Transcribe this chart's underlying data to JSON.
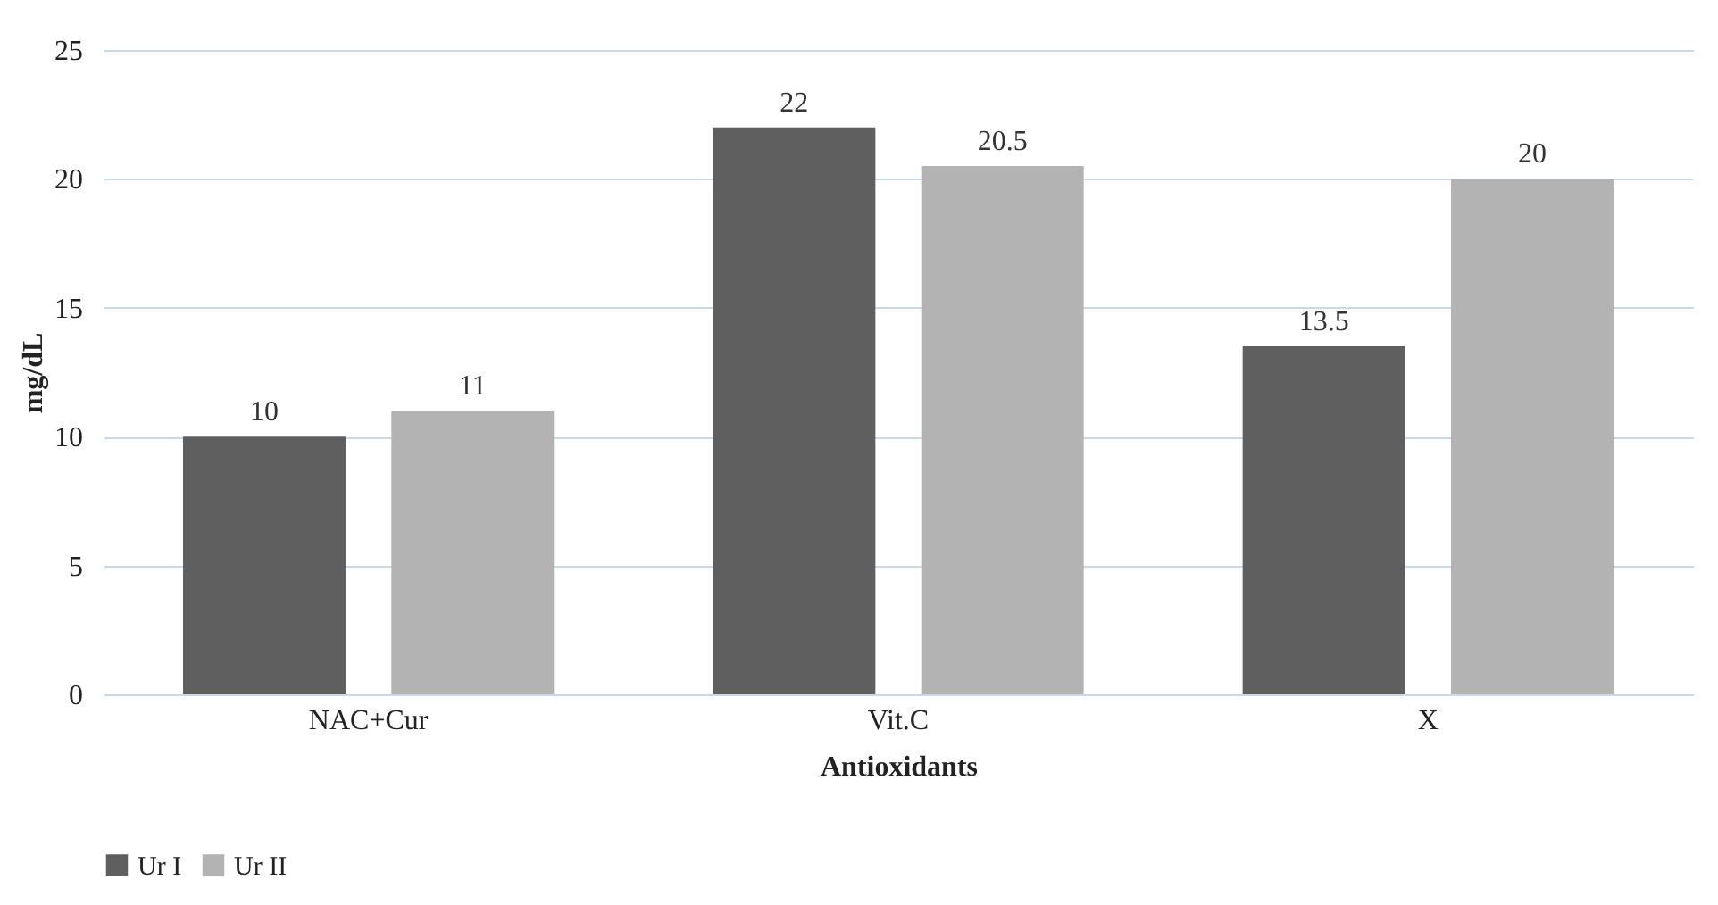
{
  "chart_data": {
    "type": "bar",
    "xlabel": "Antioxidants",
    "ylabel": "mg/dL",
    "categories": [
      "NAC+Cur",
      "Vit.C",
      "X"
    ],
    "series": [
      {
        "name": "Ur I",
        "color": "#5f5f5f",
        "values": [
          10,
          22,
          13.5
        ]
      },
      {
        "name": "Ur II",
        "color": "#b3b3b3",
        "values": [
          11,
          20.5,
          20
        ]
      }
    ],
    "ylim": [
      0,
      25
    ],
    "yticks": [
      0,
      5,
      10,
      15,
      20,
      25
    ],
    "grid": "y",
    "legend": "bottom",
    "data_labels": true
  }
}
